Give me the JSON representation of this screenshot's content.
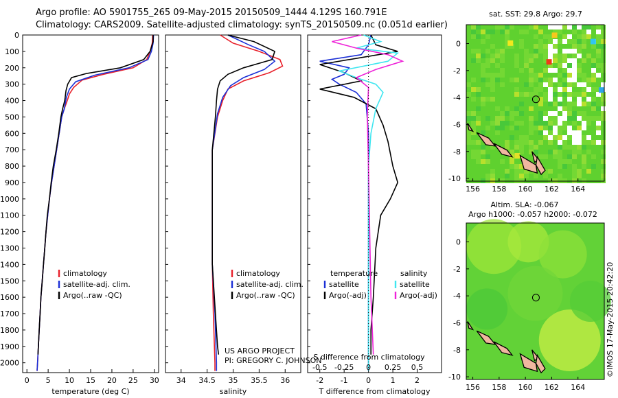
{
  "header": {
    "title_line1": "Argo profile: AO 5901755_265 09-May-2015 20150509_1444 4.129S 160.791E",
    "title_line2": "Climatology: CARS2009. Satellite-adjusted climatology: synTS_20150509.nc (0.051d earlier)"
  },
  "side_text": "©IMOS 17-May-2015 20:42:20",
  "credits": {
    "line1": "US ARGO PROJECT",
    "line2": "PI: GREGORY C. JOHNSON"
  },
  "colors": {
    "clim": "#e8202a",
    "sat": "#1b2fd6",
    "argo": "#000000",
    "sat_s": "#3fe6f0",
    "argo_s": "#ee22d8"
  },
  "chart_data": [
    {
      "type": "line",
      "xlabel": "temperature (deg C)",
      "xlim": [
        -1,
        31
      ],
      "ylim": [
        2060,
        0
      ],
      "x_ticks": [
        0,
        5,
        10,
        15,
        20,
        25,
        30
      ],
      "y_ticks": [
        0,
        100,
        200,
        300,
        400,
        500,
        600,
        700,
        800,
        900,
        1000,
        1100,
        1200,
        1300,
        1400,
        1500,
        1600,
        1700,
        1800,
        1900,
        2000
      ],
      "legend": [
        "climatology",
        "satellite-adj. clim.",
        "Argo(..raw -QC)"
      ],
      "series": [
        {
          "name": "climatology",
          "color": "#e8202a",
          "points": [
            [
              29.6,
              0
            ],
            [
              29.5,
              50
            ],
            [
              29.0,
              100
            ],
            [
              28.2,
              150
            ],
            [
              25,
              200
            ],
            [
              18,
              240
            ],
            [
              13,
              275
            ],
            [
              11,
              320
            ],
            [
              10,
              360
            ],
            [
              9.5,
              400
            ],
            [
              8.8,
              450
            ],
            [
              8.2,
              500
            ],
            [
              7.6,
              600
            ],
            [
              7.0,
              700
            ],
            [
              6.4,
              800
            ],
            [
              5.8,
              900
            ],
            [
              5.3,
              1000
            ],
            [
              4.9,
              1100
            ],
            [
              4.5,
              1200
            ],
            [
              4.2,
              1300
            ],
            [
              3.9,
              1400
            ],
            [
              3.6,
              1500
            ],
            [
              3.3,
              1600
            ],
            [
              3.1,
              1700
            ],
            [
              2.9,
              1800
            ],
            [
              2.7,
              1900
            ],
            [
              2.5,
              2000
            ],
            [
              2.4,
              2050
            ]
          ]
        },
        {
          "name": "satellite-adj. clim.",
          "color": "#1b2fd6",
          "points": [
            [
              29.8,
              0
            ],
            [
              29.7,
              50
            ],
            [
              29.3,
              100
            ],
            [
              28.5,
              150
            ],
            [
              24,
              200
            ],
            [
              16,
              245
            ],
            [
              11.5,
              285
            ],
            [
              10,
              330
            ],
            [
              9.3,
              380
            ],
            [
              8.8,
              450
            ],
            [
              8.2,
              500
            ],
            [
              7.6,
              600
            ],
            [
              7.0,
              700
            ],
            [
              6.4,
              800
            ],
            [
              5.8,
              900
            ],
            [
              5.3,
              1000
            ],
            [
              4.9,
              1100
            ],
            [
              4.5,
              1200
            ],
            [
              4.2,
              1300
            ],
            [
              3.9,
              1400
            ],
            [
              3.6,
              1500
            ],
            [
              3.3,
              1600
            ],
            [
              3.1,
              1700
            ],
            [
              2.9,
              1800
            ],
            [
              2.7,
              1900
            ],
            [
              2.5,
              2000
            ],
            [
              2.4,
              2050
            ]
          ]
        },
        {
          "name": "Argo(..raw -QC)",
          "color": "#000000",
          "points": [
            [
              29.7,
              0
            ],
            [
              29.7,
              40
            ],
            [
              29.0,
              100
            ],
            [
              27.5,
              150
            ],
            [
              22,
              200
            ],
            [
              14,
              235
            ],
            [
              10.5,
              260
            ],
            [
              9.6,
              300
            ],
            [
              9.2,
              340
            ],
            [
              8.9,
              400
            ],
            [
              8.4,
              450
            ],
            [
              8.0,
              500
            ],
            [
              7.5,
              600
            ],
            [
              6.9,
              700
            ],
            [
              6.2,
              800
            ],
            [
              5.7,
              900
            ],
            [
              5.3,
              1000
            ],
            [
              4.8,
              1100
            ],
            [
              4.5,
              1200
            ],
            [
              4.2,
              1300
            ],
            [
              3.9,
              1400
            ],
            [
              3.6,
              1500
            ],
            [
              3.3,
              1600
            ],
            [
              3.1,
              1700
            ],
            [
              2.9,
              1800
            ],
            [
              2.7,
              1900
            ],
            [
              2.6,
              1950
            ]
          ]
        }
      ]
    },
    {
      "type": "line",
      "xlabel": "salinity",
      "xlim": [
        33.7,
        36.3
      ],
      "ylim": [
        2060,
        0
      ],
      "x_ticks": [
        34,
        34.5,
        35,
        35.5,
        36
      ],
      "legend": [
        "climatology",
        "satellite-adj. clim.",
        "Argo(..raw -QC)"
      ],
      "series": [
        {
          "name": "climatology",
          "color": "#e8202a",
          "points": [
            [
              34.75,
              0
            ],
            [
              35.0,
              50
            ],
            [
              35.5,
              100
            ],
            [
              35.9,
              150
            ],
            [
              35.95,
              190
            ],
            [
              35.7,
              230
            ],
            [
              35.2,
              280
            ],
            [
              34.9,
              330
            ],
            [
              34.8,
              400
            ],
            [
              34.7,
              500
            ],
            [
              34.6,
              700
            ],
            [
              34.6,
              1000
            ],
            [
              34.6,
              1400
            ],
            [
              34.62,
              1700
            ],
            [
              34.65,
              2000
            ],
            [
              34.65,
              2050
            ]
          ]
        },
        {
          "name": "satellite-adj. clim.",
          "color": "#1b2fd6",
          "points": [
            [
              34.9,
              0
            ],
            [
              35.3,
              60
            ],
            [
              35.6,
              100
            ],
            [
              35.8,
              160
            ],
            [
              35.6,
              210
            ],
            [
              35.2,
              260
            ],
            [
              34.95,
              310
            ],
            [
              34.8,
              380
            ],
            [
              34.7,
              480
            ],
            [
              34.6,
              700
            ],
            [
              34.6,
              1000
            ],
            [
              34.6,
              1400
            ],
            [
              34.65,
              1700
            ],
            [
              34.68,
              2000
            ],
            [
              34.68,
              2050
            ]
          ]
        },
        {
          "name": "Argo(..raw -QC)",
          "color": "#000000",
          "points": [
            [
              34.9,
              0
            ],
            [
              35.4,
              40
            ],
            [
              35.8,
              100
            ],
            [
              35.75,
              150
            ],
            [
              35.2,
              200
            ],
            [
              34.9,
              240
            ],
            [
              34.75,
              280
            ],
            [
              34.7,
              330
            ],
            [
              34.68,
              400
            ],
            [
              34.66,
              500
            ],
            [
              34.6,
              700
            ],
            [
              34.6,
              1000
            ],
            [
              34.6,
              1400
            ],
            [
              34.66,
              1700
            ],
            [
              34.7,
              1900
            ],
            [
              34.72,
              1950
            ]
          ]
        }
      ]
    },
    {
      "type": "line",
      "xlabel": "T difference from climatology",
      "x2label": "S difference from climatology",
      "xlim": [
        -2.5,
        3
      ],
      "ylim": [
        2060,
        0
      ],
      "x_ticks": [
        -2,
        -1,
        0,
        1,
        2
      ],
      "x2_ticks": [
        -0.5,
        -0.25,
        0,
        0.25,
        0.5
      ],
      "x2_tick_labels": [
        "-0.5",
        "-0.25",
        "0",
        "0.25",
        "0.5"
      ],
      "legend_t_title": "temperature",
      "legend_s_title": "salinity",
      "legend_t": [
        "satellite",
        "Argo(-adj)"
      ],
      "legend_s": [
        "satellite",
        "Argo(-adj)"
      ],
      "series": [
        {
          "name": "satellite",
          "color": "#1b2fd6",
          "points": [
            [
              0.1,
              0
            ],
            [
              0.0,
              60
            ],
            [
              -0.3,
              120
            ],
            [
              -2.0,
              160
            ],
            [
              -0.8,
              200
            ],
            [
              -1.0,
              240
            ],
            [
              -1.5,
              270
            ],
            [
              -1.2,
              300
            ],
            [
              -0.5,
              350
            ],
            [
              -0.1,
              420
            ],
            [
              0,
              600
            ],
            [
              0,
              2050
            ]
          ]
        },
        {
          "name": "Argo(-adj)",
          "color": "#000000",
          "points": [
            [
              0.1,
              0
            ],
            [
              0.3,
              60
            ],
            [
              1.2,
              100
            ],
            [
              -2.0,
              180
            ],
            [
              -1.0,
              230
            ],
            [
              -0.3,
              280
            ],
            [
              -2.0,
              330
            ],
            [
              -0.6,
              380
            ],
            [
              0.3,
              450
            ],
            [
              0.6,
              550
            ],
            [
              0.8,
              650
            ],
            [
              1.0,
              800
            ],
            [
              1.2,
              900
            ],
            [
              0.9,
              1000
            ],
            [
              0.5,
              1100
            ],
            [
              0.3,
              1300
            ],
            [
              0.2,
              1600
            ],
            [
              0.1,
              1800
            ],
            [
              0.1,
              1950
            ]
          ]
        },
        {
          "name": "satellite (S)",
          "color": "#3fe6f0",
          "points": [
            [
              -0.2,
              0
            ],
            [
              0.5,
              40
            ],
            [
              -0.5,
              80
            ],
            [
              1.2,
              110
            ],
            [
              0.8,
              160
            ],
            [
              -1.2,
              220
            ],
            [
              -0.5,
              260
            ],
            [
              0.3,
              300
            ],
            [
              0.6,
              350
            ],
            [
              0.3,
              450
            ],
            [
              0.1,
              600
            ],
            [
              0.0,
              800
            ],
            [
              0.0,
              1200
            ],
            [
              0.0,
              2050
            ]
          ]
        },
        {
          "name": "Argo(-adj) (S)",
          "color": "#ee22d8",
          "points": [
            [
              -0.3,
              0
            ],
            [
              -1.5,
              40
            ],
            [
              -0.5,
              80
            ],
            [
              0.8,
              120
            ],
            [
              1.4,
              160
            ],
            [
              0.3,
              210
            ],
            [
              -0.5,
              260
            ],
            [
              0.0,
              320
            ],
            [
              -0.05,
              500
            ],
            [
              0.0,
              800
            ],
            [
              0.05,
              1200
            ],
            [
              0.1,
              1600
            ],
            [
              0.2,
              1950
            ]
          ]
        }
      ]
    },
    {
      "type": "heatmap",
      "title": "sat. SST: 29.8  Argo: 29.7",
      "xlim": [
        155.5,
        166
      ],
      "ylim": [
        -10.2,
        1.4
      ],
      "x_ticks": [
        156,
        158,
        160,
        162,
        164
      ],
      "y_ticks": [
        0,
        -2,
        -4,
        -6,
        -8,
        -10
      ],
      "marker": [
        160.8,
        -4.13
      ]
    },
    {
      "type": "heatmap",
      "title": "Altim. SLA: -0.067",
      "subtitle": "Argo h1000: -0.057  h2000: -0.072",
      "xlim": [
        155.5,
        166
      ],
      "ylim": [
        -10.2,
        1.4
      ],
      "x_ticks": [
        156,
        158,
        160,
        162,
        164
      ],
      "y_ticks": [
        0,
        -2,
        -4,
        -6,
        -8,
        -10
      ],
      "marker": [
        160.8,
        -4.13
      ]
    }
  ]
}
